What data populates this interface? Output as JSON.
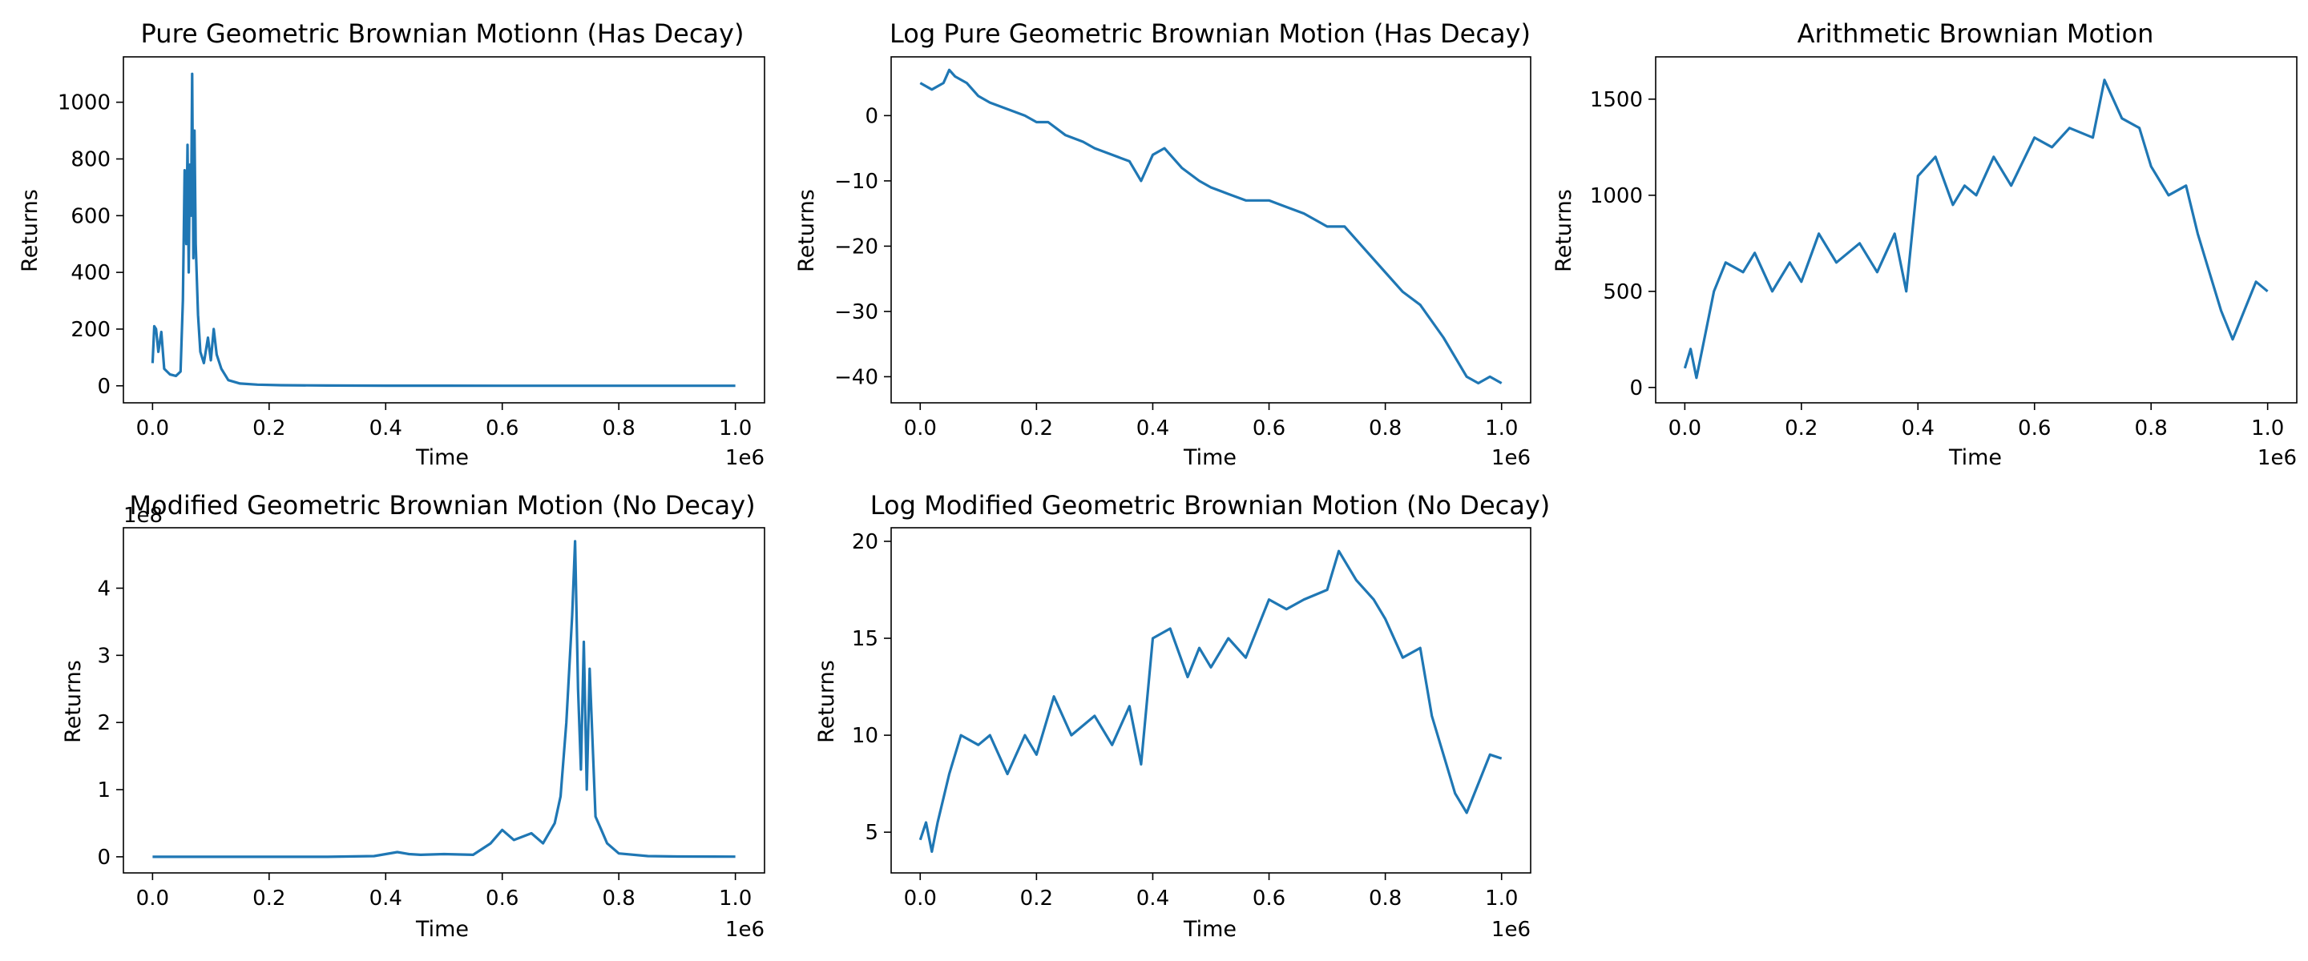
{
  "colors": {
    "line": "#1f77b4",
    "axes": "#000000",
    "background": "#ffffff"
  },
  "chart_data": [
    {
      "type": "line",
      "title": "Pure Geometric Brownian Motionn (Has Decay)",
      "xlabel": "Time",
      "ylabel": "Returns",
      "x_offset_label": "1e6",
      "y_offset_label": "",
      "xlim": [
        -0.05,
        1.05
      ],
      "ylim": [
        -60,
        1160
      ],
      "xticks": [
        0,
        0.2,
        0.4,
        0.6,
        0.8,
        1.0
      ],
      "xtick_labels": [
        "0.0",
        "0.2",
        "0.4",
        "0.6",
        "0.8",
        "1.0"
      ],
      "yticks": [
        0,
        200,
        400,
        600,
        800,
        1000
      ],
      "ytick_labels": [
        "0",
        "200",
        "400",
        "600",
        "800",
        "1000"
      ],
      "grid": false,
      "series": [
        {
          "x": [
            0,
            0.003,
            0.006,
            0.01,
            0.015,
            0.02,
            0.03,
            0.04,
            0.048,
            0.052,
            0.055,
            0.058,
            0.06,
            0.062,
            0.064,
            0.066,
            0.068,
            0.07,
            0.072,
            0.074,
            0.078,
            0.082,
            0.088,
            0.095,
            0.1,
            0.105,
            0.11,
            0.118,
            0.13,
            0.15,
            0.18,
            0.22,
            0.3,
            0.4,
            0.5,
            0.6,
            0.7,
            0.8,
            0.9,
            1.0
          ],
          "y": [
            80,
            210,
            200,
            120,
            190,
            60,
            40,
            35,
            50,
            300,
            760,
            500,
            850,
            400,
            780,
            600,
            1100,
            450,
            900,
            500,
            250,
            120,
            80,
            170,
            90,
            200,
            110,
            60,
            20,
            8,
            4,
            2,
            1,
            0.5,
            0.3,
            0.2,
            0.1,
            0.1,
            0.05,
            0.05
          ]
        }
      ]
    },
    {
      "type": "line",
      "title": "Log Pure Geometric Brownian Motion (Has Decay)",
      "xlabel": "Time",
      "ylabel": "Returns",
      "x_offset_label": "1e6",
      "y_offset_label": "",
      "xlim": [
        -0.05,
        1.05
      ],
      "ylim": [
        -44,
        9
      ],
      "xticks": [
        0,
        0.2,
        0.4,
        0.6,
        0.8,
        1.0
      ],
      "xtick_labels": [
        "0.0",
        "0.2",
        "0.4",
        "0.6",
        "0.8",
        "1.0"
      ],
      "yticks": [
        0,
        -10,
        -20,
        -30,
        -40
      ],
      "ytick_labels": [
        "0",
        "−10",
        "−20",
        "−30",
        "−40"
      ],
      "grid": false,
      "series": [
        {
          "x": [
            0,
            0.02,
            0.04,
            0.05,
            0.06,
            0.08,
            0.1,
            0.12,
            0.15,
            0.18,
            0.2,
            0.22,
            0.25,
            0.28,
            0.3,
            0.33,
            0.36,
            0.38,
            0.4,
            0.42,
            0.45,
            0.48,
            0.5,
            0.53,
            0.56,
            0.6,
            0.63,
            0.66,
            0.7,
            0.73,
            0.76,
            0.8,
            0.83,
            0.86,
            0.9,
            0.92,
            0.94,
            0.96,
            0.98,
            1.0
          ],
          "y": [
            5,
            4,
            5,
            7,
            6,
            5,
            3,
            2,
            1,
            0,
            -1,
            -1,
            -3,
            -4,
            -5,
            -6,
            -7,
            -10,
            -6,
            -5,
            -8,
            -10,
            -11,
            -12,
            -13,
            -13,
            -14,
            -15,
            -17,
            -17,
            -20,
            -24,
            -27,
            -29,
            -34,
            -37,
            -40,
            -41,
            -40,
            -41
          ]
        }
      ]
    },
    {
      "type": "line",
      "title": "Arithmetic Brownian Motion",
      "xlabel": "Time",
      "ylabel": "Returns",
      "x_offset_label": "1e6",
      "y_offset_label": "",
      "xlim": [
        -0.05,
        1.05
      ],
      "ylim": [
        -80,
        1720
      ],
      "xticks": [
        0,
        0.2,
        0.4,
        0.6,
        0.8,
        1.0
      ],
      "xtick_labels": [
        "0.0",
        "0.2",
        "0.4",
        "0.6",
        "0.8",
        "1.0"
      ],
      "yticks": [
        0,
        500,
        1000,
        1500
      ],
      "ytick_labels": [
        "0",
        "500",
        "1000",
        "1500"
      ],
      "grid": false,
      "series": [
        {
          "x": [
            0,
            0.01,
            0.02,
            0.03,
            0.05,
            0.07,
            0.1,
            0.12,
            0.15,
            0.18,
            0.2,
            0.23,
            0.26,
            0.3,
            0.33,
            0.36,
            0.38,
            0.4,
            0.43,
            0.46,
            0.48,
            0.5,
            0.53,
            0.56,
            0.6,
            0.63,
            0.66,
            0.7,
            0.72,
            0.75,
            0.78,
            0.8,
            0.83,
            0.86,
            0.88,
            0.9,
            0.92,
            0.94,
            0.96,
            0.98,
            1.0
          ],
          "y": [
            100,
            200,
            50,
            200,
            500,
            650,
            600,
            700,
            500,
            650,
            550,
            800,
            650,
            750,
            600,
            800,
            500,
            1100,
            1200,
            950,
            1050,
            1000,
            1200,
            1050,
            1300,
            1250,
            1350,
            1300,
            1600,
            1400,
            1350,
            1150,
            1000,
            1050,
            800,
            600,
            400,
            250,
            400,
            550,
            500
          ]
        }
      ]
    },
    {
      "type": "line",
      "title": "Modified Geometric Brownian Motion (No Decay)",
      "xlabel": "Time",
      "ylabel": "Returns",
      "x_offset_label": "1e6",
      "y_offset_label": "1e8",
      "xlim": [
        -0.05,
        1.05
      ],
      "ylim": [
        -0.24,
        4.9
      ],
      "xticks": [
        0,
        0.2,
        0.4,
        0.6,
        0.8,
        1.0
      ],
      "xtick_labels": [
        "0.0",
        "0.2",
        "0.4",
        "0.6",
        "0.8",
        "1.0"
      ],
      "yticks": [
        0,
        1,
        2,
        3,
        4
      ],
      "ytick_labels": [
        "0",
        "1",
        "2",
        "3",
        "4"
      ],
      "grid": false,
      "series": [
        {
          "x": [
            0,
            0.1,
            0.2,
            0.3,
            0.38,
            0.42,
            0.44,
            0.46,
            0.5,
            0.55,
            0.58,
            0.6,
            0.62,
            0.65,
            0.67,
            0.69,
            0.7,
            0.71,
            0.72,
            0.725,
            0.73,
            0.735,
            0.74,
            0.745,
            0.75,
            0.76,
            0.77,
            0.78,
            0.8,
            0.85,
            0.9,
            1.0
          ],
          "y": [
            0,
            0,
            0,
            0,
            0.01,
            0.07,
            0.04,
            0.03,
            0.04,
            0.03,
            0.2,
            0.4,
            0.25,
            0.35,
            0.2,
            0.5,
            0.9,
            2.0,
            3.6,
            4.7,
            2.5,
            1.3,
            3.2,
            1.0,
            2.8,
            0.6,
            0.4,
            0.2,
            0.05,
            0.01,
            0.005,
            0.002
          ]
        }
      ]
    },
    {
      "type": "line",
      "title": "Log Modified Geometric Brownian Motion (No Decay)",
      "xlabel": "Time",
      "ylabel": "Returns",
      "x_offset_label": "1e6",
      "y_offset_label": "",
      "xlim": [
        -0.05,
        1.05
      ],
      "ylim": [
        2.9,
        20.7
      ],
      "xticks": [
        0,
        0.2,
        0.4,
        0.6,
        0.8,
        1.0
      ],
      "xtick_labels": [
        "0.0",
        "0.2",
        "0.4",
        "0.6",
        "0.8",
        "1.0"
      ],
      "yticks": [
        5,
        10,
        15,
        20
      ],
      "ytick_labels": [
        "5",
        "10",
        "15",
        "20"
      ],
      "grid": false,
      "series": [
        {
          "x": [
            0,
            0.01,
            0.02,
            0.03,
            0.05,
            0.07,
            0.1,
            0.12,
            0.15,
            0.18,
            0.2,
            0.23,
            0.26,
            0.3,
            0.33,
            0.36,
            0.38,
            0.4,
            0.43,
            0.46,
            0.48,
            0.5,
            0.53,
            0.56,
            0.6,
            0.63,
            0.66,
            0.7,
            0.72,
            0.75,
            0.78,
            0.8,
            0.83,
            0.86,
            0.88,
            0.9,
            0.92,
            0.94,
            0.96,
            0.98,
            1.0
          ],
          "y": [
            4.6,
            5.5,
            4,
            5.5,
            8,
            10,
            9.5,
            10,
            8,
            10,
            9,
            12,
            10,
            11,
            9.5,
            11.5,
            8.5,
            15,
            15.5,
            13,
            14.5,
            13.5,
            15,
            14,
            17,
            16.5,
            17,
            17.5,
            19.5,
            18,
            17,
            16,
            14,
            14.5,
            11,
            9,
            7,
            6,
            7.5,
            9,
            8.8
          ]
        }
      ]
    }
  ]
}
